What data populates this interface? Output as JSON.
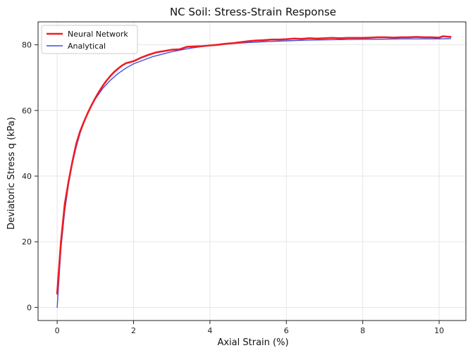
{
  "chart_data": {
    "type": "line",
    "title": "NC Soil: Stress-Strain Response",
    "xlabel": "Axial Strain (%)",
    "ylabel": "Deviatoric Stress q (kPa)",
    "xlim": [
      -0.5,
      10.7
    ],
    "ylim": [
      -4,
      87
    ],
    "x_ticks": [
      0,
      2,
      4,
      6,
      8,
      10
    ],
    "y_ticks": [
      0,
      20,
      40,
      60,
      80
    ],
    "grid": true,
    "legend": {
      "placement": "top-left",
      "entries": [
        {
          "name": "Neural Network",
          "color": "#ef1c24"
        },
        {
          "name": "Analytical",
          "color": "#3f4fe0"
        }
      ]
    },
    "series": [
      {
        "name": "Neural Network",
        "color": "#ef1c24",
        "x": [
          0.0,
          0.1,
          0.2,
          0.3,
          0.4,
          0.5,
          0.6,
          0.7,
          0.8,
          0.9,
          1.0,
          1.1,
          1.2,
          1.3,
          1.4,
          1.5,
          1.6,
          1.7,
          1.8,
          2.0,
          2.2,
          2.4,
          2.6,
          2.8,
          3.0,
          3.2,
          3.4,
          3.6,
          3.8,
          4.0,
          4.2,
          4.4,
          4.6,
          4.8,
          5.0,
          5.2,
          5.4,
          5.6,
          5.8,
          6.0,
          6.2,
          6.4,
          6.6,
          6.8,
          7.0,
          7.2,
          7.4,
          7.6,
          7.8,
          8.0,
          8.2,
          8.4,
          8.6,
          8.8,
          9.0,
          9.2,
          9.4,
          9.6,
          9.8,
          10.0,
          10.1,
          10.3
        ],
        "values": [
          4.2,
          20.0,
          31.5,
          38.5,
          44.5,
          49.8,
          53.6,
          56.5,
          59.2,
          61.6,
          63.8,
          65.8,
          67.6,
          69.2,
          70.6,
          71.8,
          72.8,
          73.7,
          74.4,
          75.0,
          76.1,
          77.0,
          77.7,
          78.1,
          78.5,
          78.6,
          79.4,
          79.5,
          79.6,
          79.8,
          80.0,
          80.3,
          80.5,
          80.8,
          81.1,
          81.3,
          81.4,
          81.6,
          81.6,
          81.7,
          81.9,
          81.8,
          82.0,
          81.9,
          82.0,
          82.1,
          82.0,
          82.1,
          82.1,
          82.1,
          82.2,
          82.3,
          82.3,
          82.2,
          82.3,
          82.3,
          82.4,
          82.3,
          82.3,
          82.2,
          82.6,
          82.4
        ]
      },
      {
        "name": "Analytical",
        "color": "#3f4fe0",
        "x": [
          0.0,
          0.1,
          0.2,
          0.3,
          0.4,
          0.5,
          0.6,
          0.7,
          0.8,
          0.9,
          1.0,
          1.2,
          1.4,
          1.6,
          1.8,
          2.0,
          2.5,
          3.0,
          3.5,
          4.0,
          4.5,
          5.0,
          5.5,
          6.0,
          6.5,
          7.0,
          7.5,
          8.0,
          8.5,
          9.0,
          9.5,
          10.0,
          10.3
        ],
        "values": [
          0.0,
          18.0,
          29.5,
          37.7,
          44.0,
          48.9,
          53.0,
          56.3,
          59.1,
          61.5,
          63.5,
          66.8,
          69.3,
          71.3,
          72.9,
          74.2,
          76.4,
          77.9,
          79.0,
          79.8,
          80.3,
          80.7,
          81.0,
          81.2,
          81.4,
          81.5,
          81.6,
          81.7,
          81.7,
          81.8,
          81.8,
          81.8,
          81.9
        ]
      }
    ]
  }
}
